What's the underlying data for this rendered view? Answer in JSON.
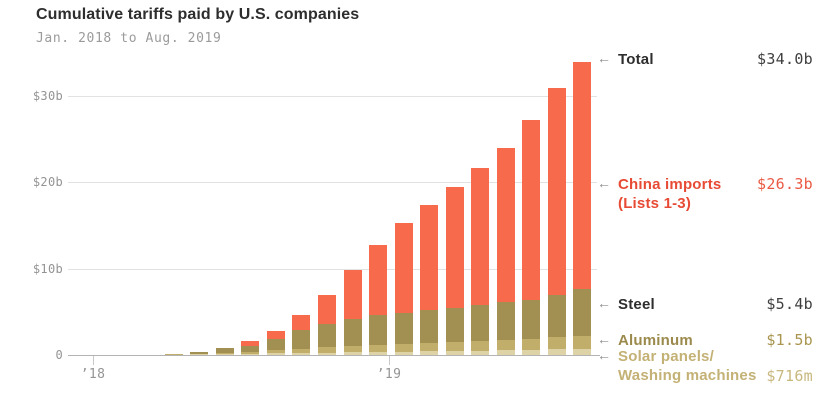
{
  "header": {
    "title": "Cumulative tariffs paid by U.S. companies",
    "subtitle": "Jan. 2018 to Aug. 2019"
  },
  "icons": {
    "left_arrow": "←"
  },
  "colors": {
    "china_bar": "#f76b4c",
    "steel_bar": "#a28f52",
    "aluminum_bar": "#c2ae6b",
    "solar_bar": "#ded3a6",
    "china_text": "#e84b35",
    "china_value": "#ea5a43",
    "dark_text": "#2e2e2e",
    "dark_value": "#3f3f3f",
    "aluminum_text": "#9c8a4d",
    "aluminum_value": "#a9954f",
    "solar_text": "#c3b175",
    "solar_value": "#c8b87e",
    "axis_text": "#949494",
    "grid_line": "#e2e2e2",
    "axis_line": "#b3b3b3",
    "tick_mark": "#c9c9c9",
    "arrow": "#8b8b8b"
  },
  "chart_data": {
    "type": "bar",
    "stacked": true,
    "title": "Cumulative tariffs paid by U.S. companies",
    "subtitle": "Jan. 2018 to Aug. 2019",
    "unit": "billions of USD",
    "x": [
      "Jan 2018",
      "Feb 2018",
      "Mar 2018",
      "Apr 2018",
      "May 2018",
      "Jun 2018",
      "Jul 2018",
      "Aug 2018",
      "Sep 2018",
      "Oct 2018",
      "Nov 2018",
      "Dec 2018",
      "Jan 2019",
      "Feb 2019",
      "Mar 2019",
      "Apr 2019",
      "May 2019",
      "Jun 2019",
      "Jul 2019",
      "Aug 2019"
    ],
    "series": [
      {
        "name": "Solar panels/Washing machines",
        "final_value_label": "$716m",
        "values": [
          0,
          0.01,
          0.02,
          0.04,
          0.08,
          0.11,
          0.15,
          0.19,
          0.23,
          0.27,
          0.31,
          0.35,
          0.39,
          0.43,
          0.47,
          0.51,
          0.55,
          0.6,
          0.66,
          0.716
        ]
      },
      {
        "name": "Aluminum",
        "final_value_label": "$1.5b",
        "values": [
          0,
          0,
          0.01,
          0.03,
          0.06,
          0.12,
          0.2,
          0.35,
          0.5,
          0.62,
          0.72,
          0.8,
          0.87,
          0.95,
          1.03,
          1.11,
          1.19,
          1.27,
          1.38,
          1.5
        ]
      },
      {
        "name": "Steel",
        "final_value_label": "$5.4b",
        "values": [
          0,
          0,
          0.02,
          0.08,
          0.23,
          0.55,
          0.75,
          1.3,
          2.17,
          2.71,
          3.17,
          3.45,
          3.59,
          3.82,
          4.0,
          4.18,
          4.36,
          4.53,
          4.86,
          5.4
        ]
      },
      {
        "name": "China imports (Lists 1-3)",
        "final_value_label": "$26.3b",
        "values": [
          0,
          0,
          0,
          0,
          0,
          0,
          0.5,
          0.9,
          1.75,
          3.4,
          5.6,
          8.1,
          10.45,
          12.2,
          14.0,
          15.9,
          17.9,
          20.8,
          24.0,
          26.3
        ]
      }
    ],
    "total_final_label": "$34.0b",
    "yticks": [
      {
        "value": 0,
        "label": "0"
      },
      {
        "value": 10,
        "label": "$10b"
      },
      {
        "value": 20,
        "label": "$20b"
      },
      {
        "value": 30,
        "label": "$30b"
      }
    ],
    "xticks": [
      {
        "label": "’18",
        "month_index": 0
      },
      {
        "label": "’19",
        "month_index": 12
      }
    ],
    "ylim": [
      0,
      34.75
    ],
    "grid": true,
    "legend_position": "right-annotations"
  },
  "annotations": {
    "total": {
      "label": "Total",
      "value": "$34.0b"
    },
    "china": {
      "label_line1": "China imports",
      "label_line2": "(Lists 1-3)",
      "value": "$26.3b"
    },
    "steel": {
      "label": "Steel",
      "value": "$5.4b"
    },
    "aluminum": {
      "label": "Aluminum",
      "value": "$1.5b"
    },
    "solar": {
      "label_line1": "Solar panels/",
      "label_line2": "Washing machines",
      "value": "$716m"
    }
  }
}
